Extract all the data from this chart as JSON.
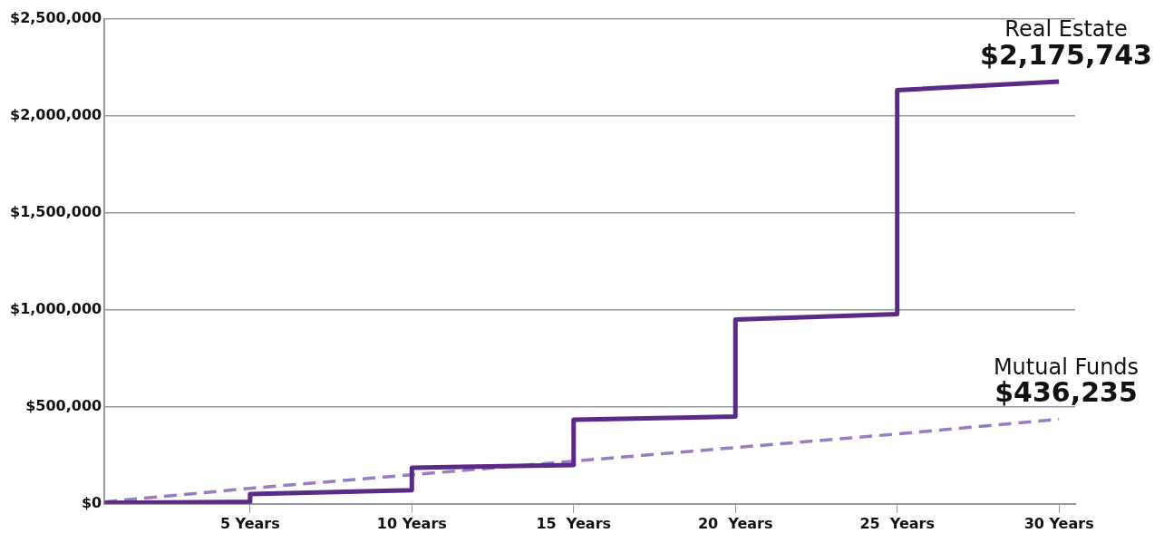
{
  "chart_data": {
    "type": "line",
    "xlim": [
      0.5,
      30.5
    ],
    "xticks": [
      {
        "value": 5,
        "label": "5 Years"
      },
      {
        "value": 10,
        "label": "10 Years"
      },
      {
        "value": 15,
        "label": "15  Years"
      },
      {
        "value": 20,
        "label": "20  Years"
      },
      {
        "value": 25,
        "label": "25  Years"
      },
      {
        "value": 30,
        "label": "30 Years"
      }
    ],
    "ylim": [
      0,
      2500000
    ],
    "yticks": [
      {
        "value": 0,
        "label": "$0"
      },
      {
        "value": 500000,
        "label": "$500,000"
      },
      {
        "value": 1000000,
        "label": "$1,000,000"
      },
      {
        "value": 1500000,
        "label": "$1,500,000"
      },
      {
        "value": 2000000,
        "label": "$2,000,000"
      },
      {
        "value": 2500000,
        "label": "$2,500,000"
      }
    ],
    "grid": "y",
    "legend": false,
    "marker": "none",
    "series": [
      {
        "name": "Real Estate",
        "color": "#5b2a86",
        "line_style": "solid",
        "x": [
          0.5,
          5,
          5,
          10,
          10,
          15,
          15,
          20,
          20,
          25,
          25,
          30
        ],
        "values": [
          5000,
          10000,
          50000,
          70000,
          186000,
          200000,
          433000,
          450000,
          950000,
          978000,
          2132000,
          2175743
        ],
        "value_labels": [
          null,
          null,
          null,
          null,
          null,
          null,
          null,
          null,
          null,
          null,
          null,
          "$2,175,743"
        ]
      },
      {
        "name": "Mutual Funds",
        "color": "#9a7cc0",
        "line_style": "dashed",
        "x": [
          0.5,
          5,
          10,
          15,
          20,
          25,
          30
        ],
        "values": [
          10000,
          80000,
          150000,
          220000,
          290000,
          360000,
          436235
        ],
        "value_labels": [
          null,
          null,
          null,
          null,
          null,
          null,
          "$436,235"
        ]
      }
    ]
  }
}
